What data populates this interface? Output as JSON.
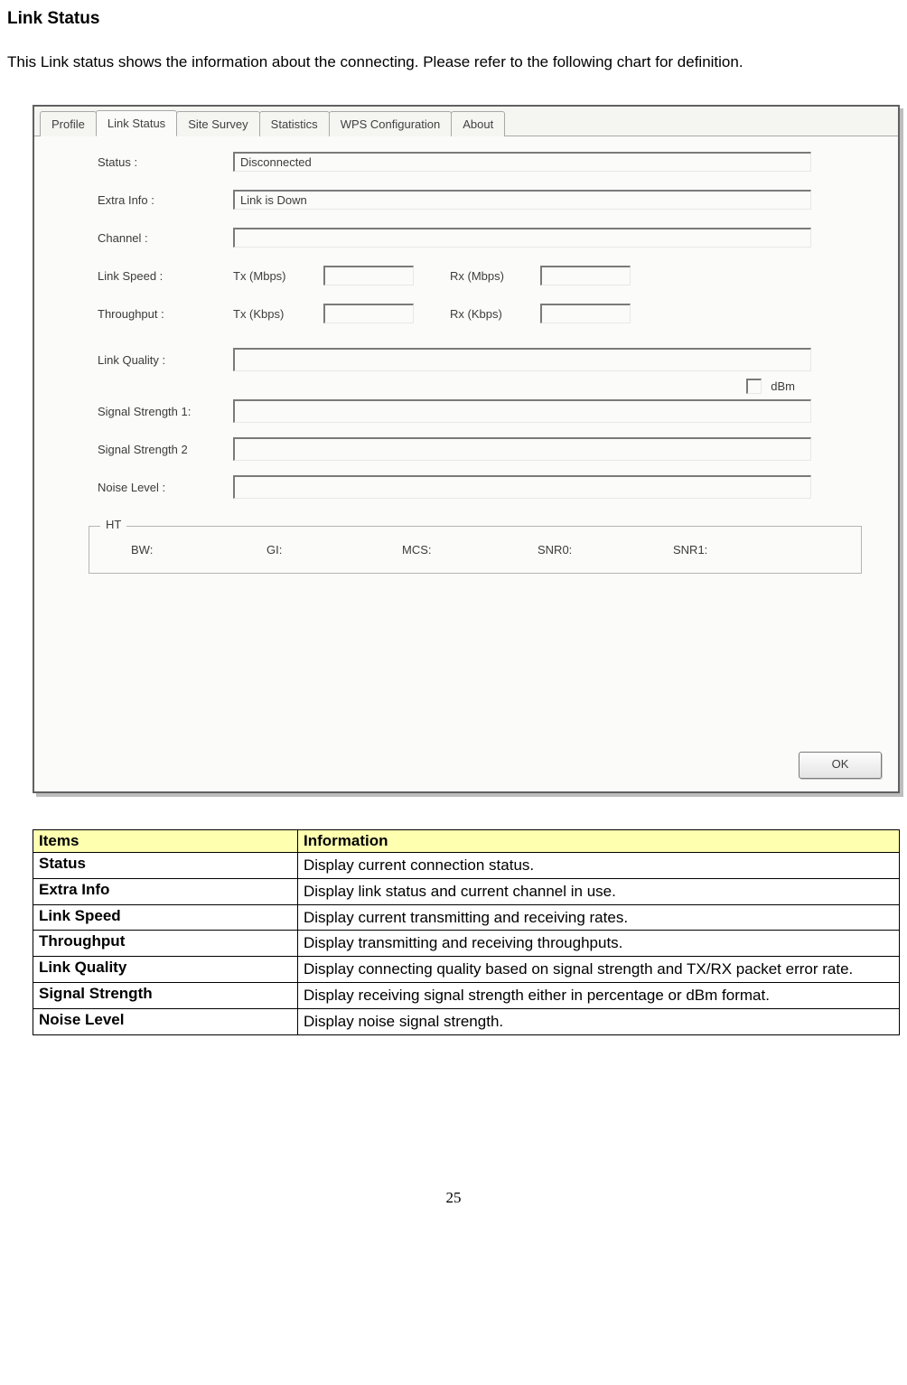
{
  "heading": "Link Status",
  "intro": "This Link status shows the information about the connecting. Please refer to the following chart for definition.",
  "tabs": {
    "items": [
      "Profile",
      "Link Status",
      "Site Survey",
      "Statistics",
      "WPS Configuration",
      "About"
    ],
    "active_index": 1
  },
  "form": {
    "status_label": "Status :",
    "status_value": "Disconnected",
    "extra_label": "Extra Info :",
    "extra_value": "Link is Down",
    "channel_label": "Channel :",
    "channel_value": "",
    "linkspeed_label": "Link Speed :",
    "tx_mbps_label": "Tx (Mbps)",
    "rx_mbps_label": "Rx (Mbps)",
    "throughput_label": "Throughput :",
    "tx_kbps_label": "Tx (Kbps)",
    "rx_kbps_label": "Rx (Kbps)",
    "link_quality_label": "Link Quality :",
    "dbm_label": "dBm",
    "signal1_label": "Signal Strength 1:",
    "signal2_label": "Signal Strength 2",
    "noise_label": "Noise Level :"
  },
  "ht": {
    "title": "HT",
    "bw": "BW:",
    "gi": "GI:",
    "mcs": "MCS:",
    "snr0": "SNR0:",
    "snr1": "SNR1:"
  },
  "ok_label": "OK",
  "table": {
    "header_items": "Items",
    "header_info": "Information",
    "rows": [
      {
        "item": "Status",
        "info": "Display current connection status."
      },
      {
        "item": "Extra Info",
        "info": "Display link status and current channel in use."
      },
      {
        "item": "Link Speed",
        "info": "Display current transmitting and receiving rates."
      },
      {
        "item": "Throughput",
        "info": "Display transmitting and receiving throughputs."
      },
      {
        "item": "Link Quality",
        "info": "Display connecting quality based on signal strength and TX/RX packet error rate."
      },
      {
        "item": "Signal Strength",
        "info": "Display receiving signal strength either in percentage or dBm format."
      },
      {
        "item": "Noise Level",
        "info": "Display noise signal strength."
      }
    ],
    "justify_rows": [
      4,
      5
    ]
  },
  "page_number": "25",
  "colors": {
    "table_header_bg": "#ffffb0",
    "screenshot_border": "#616060",
    "screenshot_bg": "#fbfbf9"
  }
}
